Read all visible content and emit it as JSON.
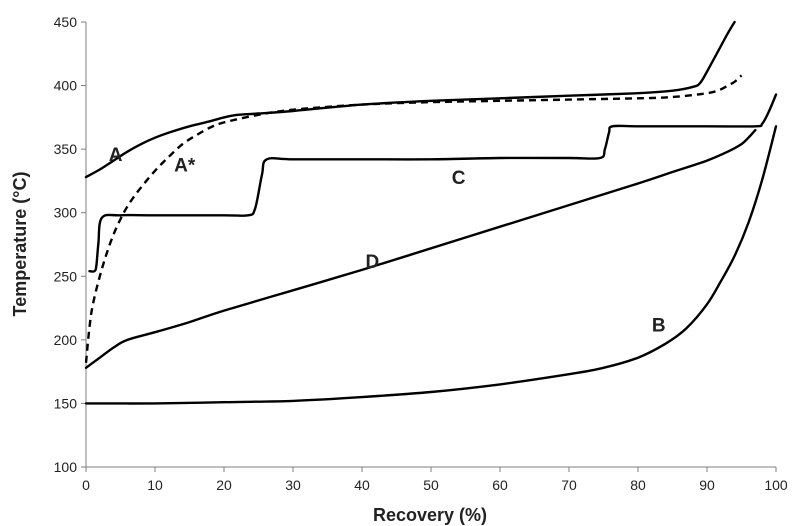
{
  "chart_data": {
    "type": "line",
    "title": "",
    "xlabel": "Recovery (%)",
    "ylabel": "Temperature (°C)",
    "xlim": [
      0,
      100
    ],
    "ylim": [
      100,
      450
    ],
    "xticks": [
      0,
      10,
      20,
      30,
      40,
      50,
      60,
      70,
      80,
      90,
      100
    ],
    "yticks": [
      100,
      150,
      200,
      250,
      300,
      350,
      400,
      450
    ],
    "grid": false,
    "legend": "none",
    "series": [
      {
        "name": "A",
        "style": "solid",
        "color": "#000000",
        "x": [
          0,
          2,
          4,
          6,
          8,
          10,
          12,
          15,
          18,
          20,
          22,
          25,
          30,
          40,
          50,
          60,
          70,
          80,
          85,
          88,
          89,
          90,
          91,
          92,
          93,
          94
        ],
        "y": [
          328,
          334,
          341,
          348,
          354,
          359,
          363,
          368,
          372,
          375,
          377,
          378,
          380,
          385,
          388,
          390,
          392,
          394,
          396,
          399,
          402,
          411,
          421,
          431,
          441,
          450
        ]
      },
      {
        "name": "A*",
        "style": "dashed",
        "color": "#000000",
        "x": [
          0,
          0.5,
          1,
          2,
          3,
          4,
          5,
          6,
          7,
          8,
          10,
          12,
          14,
          16,
          18,
          20,
          25,
          30,
          40,
          50,
          60,
          70,
          80,
          85,
          90,
          92,
          93,
          94,
          95
        ],
        "y": [
          182,
          210,
          228,
          250,
          268,
          283,
          295,
          305,
          313,
          320,
          333,
          344,
          354,
          361,
          367,
          371,
          377,
          381,
          385,
          387,
          388,
          389,
          390,
          391,
          394,
          397,
          400,
          403,
          408
        ]
      },
      {
        "name": "B",
        "style": "solid",
        "color": "#000000",
        "x": [
          0,
          10,
          20,
          30,
          40,
          50,
          60,
          70,
          75,
          80,
          84,
          87,
          90,
          92,
          94,
          96,
          98,
          100
        ],
        "y": [
          150,
          150,
          151,
          152,
          155,
          159,
          165,
          173,
          178,
          186,
          197,
          209,
          228,
          246,
          266,
          292,
          326,
          368
        ]
      },
      {
        "name": "C",
        "style": "solid",
        "color": "#000000",
        "x": [
          0.5,
          1.2,
          1.5,
          1.8,
          2.3,
          5,
          10,
          20,
          23.5,
          24.5,
          25.5,
          26.2,
          30,
          40,
          50,
          60,
          70,
          74.5,
          75.2,
          75.8,
          76.3,
          80,
          90,
          97,
          98,
          99,
          100
        ],
        "y": [
          254,
          254,
          258,
          276,
          296,
          298,
          298,
          298,
          298,
          303,
          330,
          342,
          342,
          342,
          342,
          343,
          343,
          343,
          350,
          363,
          368,
          368,
          368,
          368,
          370,
          380,
          393
        ]
      },
      {
        "name": "D",
        "style": "solid",
        "color": "#000000",
        "x": [
          0,
          2,
          4,
          6,
          10,
          15,
          20,
          30,
          40,
          50,
          60,
          70,
          80,
          85,
          90,
          93,
          95,
          96,
          97
        ],
        "y": [
          178,
          186,
          194,
          200,
          206,
          214,
          223,
          239,
          255,
          272,
          289,
          306,
          323,
          332,
          341,
          348,
          354,
          359,
          365
        ]
      }
    ],
    "annotations": [
      {
        "text": "A",
        "x": 4.3,
        "y": 346
      },
      {
        "text": "A*",
        "x": 14.3,
        "y": 338
      },
      {
        "text": "C",
        "x": 54,
        "y": 328
      },
      {
        "text": "D",
        "x": 41.5,
        "y": 262
      },
      {
        "text": "B",
        "x": 83,
        "y": 212
      }
    ]
  }
}
